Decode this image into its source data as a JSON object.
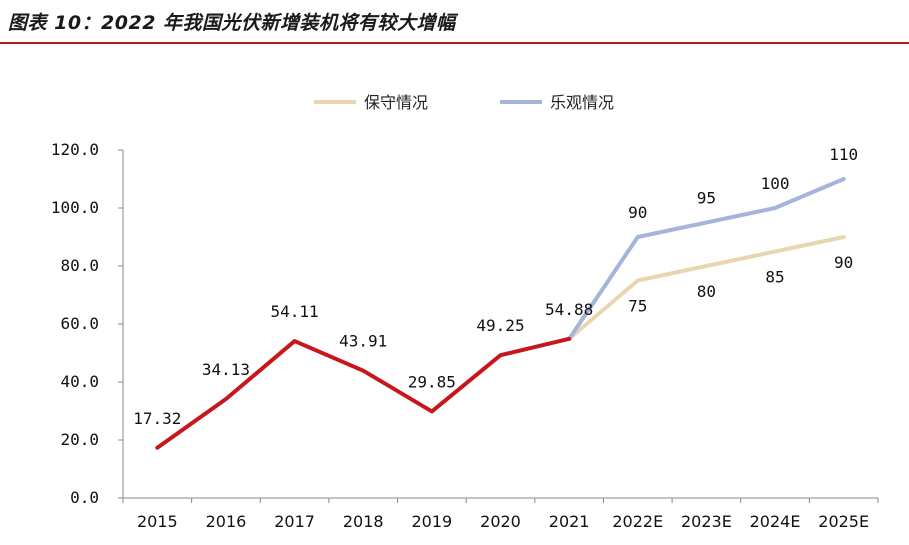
{
  "figure_title": "图表 10：2022 年我国光伏新增装机将有较大增幅",
  "chart_data": {
    "type": "line",
    "x": [
      "2015",
      "2016",
      "2017",
      "2018",
      "2019",
      "2020",
      "2021",
      "2022E",
      "2023E",
      "2024E",
      "2025E"
    ],
    "ylim": [
      0,
      120
    ],
    "yticks": [
      "0.0",
      "20.0",
      "40.0",
      "60.0",
      "80.0",
      "100.0",
      "120.0"
    ],
    "grid": false,
    "legend_position": "top-center",
    "series": [
      {
        "name": "",
        "color": "#c8161d",
        "x": [
          "2015",
          "2016",
          "2017",
          "2018",
          "2019",
          "2020",
          "2021"
        ],
        "values": [
          17.32,
          34.13,
          54.11,
          43.91,
          29.85,
          49.25,
          54.88
        ],
        "labels": [
          "17.32",
          "34.13",
          "54.11",
          "43.91",
          "29.85",
          "49.25",
          "54.88"
        ]
      },
      {
        "name": "保守情况",
        "color": "#e8d6b0",
        "x": [
          "2021",
          "2022E",
          "2023E",
          "2024E",
          "2025E"
        ],
        "values": [
          54.88,
          75,
          80,
          85,
          90
        ],
        "labels": [
          "",
          "75",
          "80",
          "85",
          "90"
        ]
      },
      {
        "name": "乐观情况",
        "color": "#a4b4db",
        "x": [
          "2021",
          "2022E",
          "2023E",
          "2024E",
          "2025E"
        ],
        "values": [
          54.88,
          90,
          95,
          100,
          110
        ],
        "labels": [
          "",
          "90",
          "95",
          "100",
          "110"
        ]
      }
    ]
  }
}
